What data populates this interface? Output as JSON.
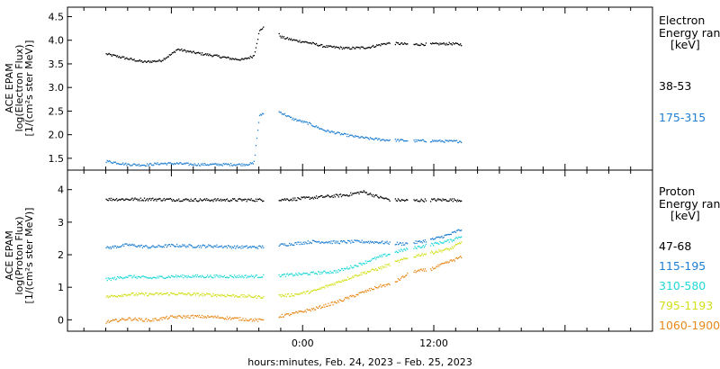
{
  "chart_data": [
    {
      "type": "scatter",
      "panel": "electron",
      "ylabel_lines": [
        "ACE EPAM",
        "log(Electron Flux)",
        "[1/(cm²s ster MeV)]"
      ],
      "ylim": [
        1.25,
        4.7
      ],
      "yticks": [
        "1.5",
        "2.0",
        "2.5",
        "3.0",
        "3.5",
        "4.0",
        "4.5"
      ],
      "ytick_values": [
        1.5,
        2.0,
        2.5,
        3.0,
        3.5,
        4.0,
        4.5
      ],
      "legend_header": [
        "Electron",
        "Energy ran",
        "[keV]"
      ],
      "series": [
        {
          "name": "38-53",
          "color": "#000000",
          "x": [
            -18.0,
            -16.0,
            -14.5,
            -13.0,
            -12.0,
            -11.5,
            -10.0,
            -8.0,
            -6.5,
            -5.5,
            -4.5,
            -4.0,
            -3.2,
            -2.0,
            -1.0,
            0.5,
            2.0,
            4.0,
            6.0,
            7.5,
            8.0,
            10.0,
            12.0,
            13.5,
            14.5
          ],
          "y": [
            3.72,
            3.62,
            3.55,
            3.58,
            3.72,
            3.82,
            3.75,
            3.68,
            3.62,
            3.6,
            3.68,
            4.2,
            4.4,
            4.08,
            4.02,
            3.96,
            3.88,
            3.84,
            3.86,
            3.94,
            3.95,
            3.92,
            3.93,
            3.94,
            3.92
          ]
        },
        {
          "name": "175-315",
          "color": "#1e7fd2",
          "x": [
            -18.0,
            -16.0,
            -14.5,
            -13.0,
            -11.5,
            -10.0,
            -8.0,
            -6.5,
            -5.5,
            -4.5,
            -4.0,
            -3.2,
            -2.0,
            -1.0,
            0.5,
            2.0,
            4.0,
            6.0,
            7.5,
            8.0,
            10.0,
            12.0,
            13.5,
            14.5
          ],
          "y": [
            1.45,
            1.38,
            1.37,
            1.4,
            1.4,
            1.38,
            1.38,
            1.38,
            1.38,
            1.4,
            2.4,
            2.55,
            2.48,
            2.35,
            2.25,
            2.1,
            2.0,
            1.93,
            1.9,
            1.9,
            1.88,
            1.88,
            1.87,
            1.87
          ]
        }
      ]
    },
    {
      "type": "scatter",
      "panel": "proton",
      "ylabel_lines": [
        "ACE EPAM",
        "log(Proton Flux)",
        "[1/(cm²s ster MeV)]"
      ],
      "ylim": [
        -0.35,
        4.6
      ],
      "yticks": [
        "0",
        "1",
        "2",
        "3",
        "4"
      ],
      "ytick_values": [
        0,
        1,
        2,
        3,
        4
      ],
      "legend_header": [
        "Proton",
        "Energy ran",
        "[keV]"
      ],
      "series": [
        {
          "name": "47-68",
          "color": "#000000",
          "x": [
            -18.0,
            -14.0,
            -10.0,
            -6.0,
            -4.0,
            -1.0,
            2.0,
            4.0,
            5.5,
            7.0,
            8.0,
            10.0,
            12.0,
            14.5
          ],
          "y": [
            3.72,
            3.72,
            3.7,
            3.7,
            3.7,
            3.72,
            3.8,
            3.85,
            3.95,
            3.78,
            3.7,
            3.68,
            3.7,
            3.7
          ]
        },
        {
          "name": "115-195",
          "color": "#1e7fd2",
          "x": [
            -18.0,
            -16.0,
            -14.0,
            -12.0,
            -10.0,
            -8.0,
            -6.0,
            -4.0,
            -1.0,
            1.0,
            3.0,
            5.0,
            7.0,
            9.0,
            10.5,
            12.0,
            13.5,
            14.5
          ],
          "y": [
            2.22,
            2.32,
            2.25,
            2.3,
            2.28,
            2.28,
            2.25,
            2.25,
            2.35,
            2.42,
            2.4,
            2.42,
            2.4,
            2.35,
            2.4,
            2.5,
            2.65,
            2.8
          ]
        },
        {
          "name": "310-580",
          "color": "#22d8d8",
          "x": [
            -18.0,
            -16.0,
            -14.0,
            -12.0,
            -10.0,
            -8.0,
            -6.0,
            -4.0,
            -1.0,
            1.0,
            3.0,
            5.0,
            7.0,
            9.0,
            10.5,
            12.0,
            13.5,
            14.5
          ],
          "y": [
            1.25,
            1.35,
            1.3,
            1.35,
            1.35,
            1.35,
            1.35,
            1.35,
            1.4,
            1.45,
            1.5,
            1.7,
            1.95,
            2.15,
            2.25,
            2.35,
            2.45,
            2.6
          ]
        },
        {
          "name": "795-1193",
          "color": "#d2e01a",
          "x": [
            -18.0,
            -16.0,
            -14.0,
            -12.0,
            -10.0,
            -8.0,
            -6.0,
            -4.0,
            -1.0,
            1.0,
            3.0,
            5.0,
            7.0,
            9.0,
            10.5,
            12.0,
            13.5,
            14.5
          ],
          "y": [
            0.72,
            0.8,
            0.8,
            0.82,
            0.8,
            0.78,
            0.75,
            0.72,
            0.78,
            0.9,
            1.15,
            1.4,
            1.6,
            1.85,
            2.0,
            2.1,
            2.2,
            2.4
          ]
        },
        {
          "name": "1060-1900",
          "color": "#e8891a",
          "x": [
            -18.0,
            -16.0,
            -14.0,
            -12.0,
            -10.0,
            -8.0,
            -6.0,
            -4.0,
            -1.0,
            1.0,
            3.0,
            5.0,
            7.0,
            8.0,
            10.0,
            11.5,
            13.0,
            14.5
          ],
          "y": [
            -0.05,
            0.05,
            0.0,
            0.1,
            0.12,
            0.1,
            0.05,
            0.0,
            0.2,
            0.35,
            0.55,
            0.8,
            1.05,
            1.1,
            1.5,
            1.55,
            1.75,
            1.95
          ]
        }
      ]
    }
  ],
  "shared_axis": {
    "xlim": [
      -21.5,
      32.0
    ],
    "xtick_labels": [
      "0:00",
      "12:00"
    ],
    "xtick_values": [
      0,
      12
    ],
    "xlabel": "hours:minutes, Feb. 24, 2023 – Feb. 25, 2023"
  }
}
